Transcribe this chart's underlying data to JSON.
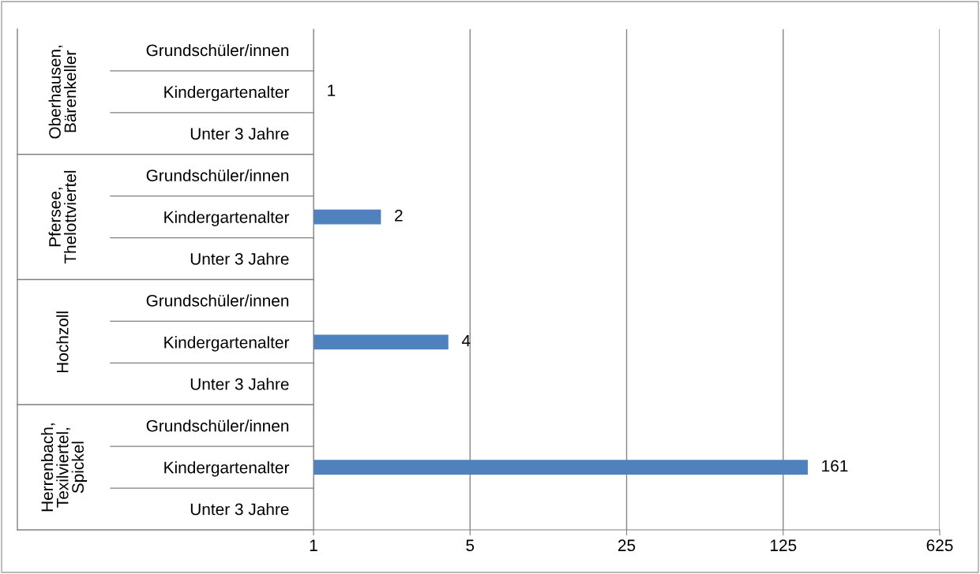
{
  "chart_data": {
    "type": "bar",
    "orientation": "horizontal",
    "categories": [
      "Grundschüler/innen",
      "Kindergartenalter",
      "Unter 3 Jahre",
      "Grundschüler/innen",
      "Kindergartenalter",
      "Unter 3 Jahre",
      "Grundschüler/innen",
      "Kindergartenalter",
      "Unter 3 Jahre",
      "Grundschüler/innen",
      "Kindergartenalter",
      "Unter 3 Jahre"
    ],
    "values": [
      null,
      1,
      null,
      null,
      2,
      null,
      null,
      4,
      null,
      null,
      161,
      null
    ],
    "color": "#4f81bd",
    "annotations": [
      "Oberhausen,\nBärenkeller",
      "Pfersee,\nThelottviertel",
      "Hochzoll",
      "Herrenbach,\nTexilviertel,\nSpickel"
    ],
    "log": "x",
    "xlim": [
      1,
      625
    ],
    "xticks": [
      1,
      5,
      25,
      125,
      625
    ],
    "grid": "x",
    "data_labels": true
  }
}
